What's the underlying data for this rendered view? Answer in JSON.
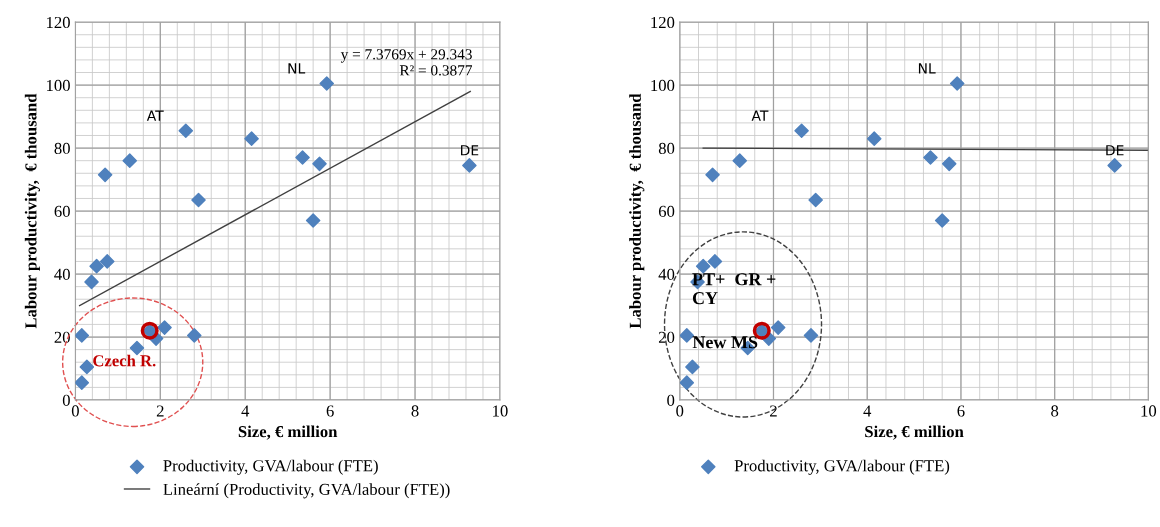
{
  "chart_data": [
    {
      "type": "scatter",
      "xlabel": "Size, € million",
      "ylabel": "Labour productivity,  € thousand",
      "xlim": [
        0,
        10
      ],
      "ylim": [
        0,
        120
      ],
      "xticks": [
        0,
        2,
        4,
        6,
        8,
        10
      ],
      "yticks": [
        0,
        20,
        40,
        60,
        80,
        100,
        120
      ],
      "grid": true,
      "legend": "bottom",
      "marker": "diamond",
      "series": [
        {
          "name": "Productivity, GVA/labour (FTE)",
          "color": "#4f81bd",
          "x": [
            0.15,
            0.15,
            0.27,
            0.38,
            0.5,
            0.75,
            0.7,
            1.28,
            1.45,
            1.75,
            1.9,
            2.1,
            2.8,
            2.6,
            2.9,
            4.15,
            5.35,
            5.6,
            5.75,
            5.92,
            9.28
          ],
          "values": [
            20.5,
            5.5,
            10.5,
            37.5,
            42.5,
            44,
            71.5,
            76,
            16.5,
            22,
            19.5,
            23,
            20.5,
            85.5,
            63.5,
            83,
            77,
            57,
            75,
            100.5,
            74.5
          ]
        },
        {
          "type": "scatter",
          "marker": "circle",
          "color": "#c00000",
          "x": [
            1.75
          ],
          "values": [
            22
          ]
        },
        {
          "type": "line",
          "name": "Lineární (Productivity, GVA/labour (FTE))",
          "color": "#404040",
          "marker": "none",
          "line_style": "solid",
          "x": [
            0.1,
            9.3
          ],
          "values": [
            30,
            98
          ]
        }
      ],
      "annotations": [
        {
          "text": "AT",
          "x": 2.6,
          "y": 85.5
        },
        {
          "text": "NL",
          "x": 5.92,
          "y": 100.5
        },
        {
          "text": "DE",
          "x": 9.28,
          "y": 74.5
        },
        "y = 7.3769x + 29.343\nR² = 0.3877",
        {
          "text": "Czech R.",
          "x": 0.4,
          "y": 12
        }
      ]
    },
    {
      "type": "scatter",
      "xlabel": "Size, € million",
      "ylabel": "Labour productivity,  € thousand",
      "xlim": [
        0,
        10
      ],
      "ylim": [
        0,
        120
      ],
      "xticks": [
        0,
        2,
        4,
        6,
        8,
        10
      ],
      "yticks": [
        0,
        20,
        40,
        60,
        80,
        100,
        120
      ],
      "grid": true,
      "legend": "bottom",
      "marker": "diamond",
      "series": [
        {
          "name": "Productivity, GVA/labour (FTE)",
          "color": "#4f81bd",
          "x": [
            0.15,
            0.15,
            0.27,
            0.38,
            0.5,
            0.75,
            0.7,
            1.28,
            1.45,
            1.75,
            1.9,
            2.1,
            2.8,
            2.6,
            2.9,
            4.15,
            5.35,
            5.6,
            5.75,
            5.92,
            9.28
          ],
          "values": [
            20.5,
            5.5,
            10.5,
            37.5,
            42.5,
            44,
            71.5,
            76,
            16.5,
            22,
            19.5,
            23,
            20.5,
            85.5,
            63.5,
            83,
            77,
            57,
            75,
            100.5,
            74.5
          ]
        },
        {
          "type": "scatter",
          "marker": "circle",
          "color": "#c00000",
          "x": [
            1.75
          ],
          "values": [
            22
          ]
        },
        {
          "type": "line",
          "color": "#404040",
          "marker": "none",
          "line_style": "solid",
          "x": [
            0.5,
            10
          ],
          "values": [
            80,
            79.3
          ]
        }
      ],
      "annotations": [
        {
          "text": "AT",
          "x": 2.6,
          "y": 85.5
        },
        {
          "text": "NL",
          "x": 5.92,
          "y": 100.5
        },
        {
          "text": "DE",
          "x": 9.28,
          "y": 74.5
        },
        {
          "text": "PT+  GR +\nCY",
          "x": 0.38,
          "y": 37.5
        },
        {
          "text": "New MS",
          "x": 0.15,
          "y": 20.5
        }
      ]
    }
  ]
}
